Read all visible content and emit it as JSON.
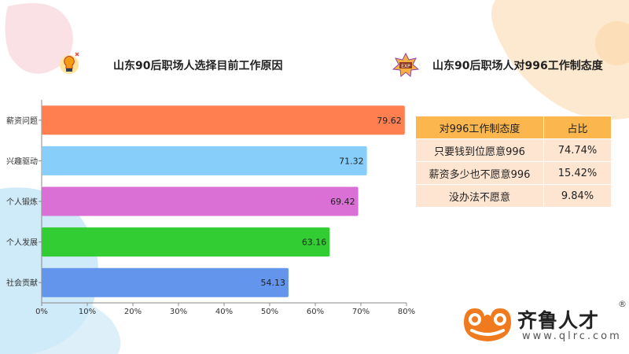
{
  "left_panel": {
    "title": "山东90后职场人选择目前工作原因"
  },
  "right_panel": {
    "title": "山东90后职场人对996工作制态度",
    "table": {
      "headers": [
        "对996工作制态度",
        "占比"
      ],
      "rows": [
        [
          "只要钱到位愿意996",
          "74.74%"
        ],
        [
          "薪资多少也不愿意996",
          "15.42%"
        ],
        [
          "没办法不愿意",
          "9.84%"
        ]
      ]
    }
  },
  "chart_data": {
    "type": "bar",
    "orientation": "horizontal",
    "categories": [
      "薪资问题",
      "兴趣驱动",
      "个人锻炼",
      "个人发展",
      "社会贡献"
    ],
    "values": [
      79.62,
      71.32,
      69.42,
      63.16,
      54.13
    ],
    "colors": [
      "#FF7F50",
      "#87CEFA",
      "#DA70D6",
      "#32CD32",
      "#6495ED"
    ],
    "xlim": [
      0,
      80
    ],
    "xticks": [
      "0%",
      "10%",
      "20%",
      "30%",
      "40%",
      "50%",
      "60%",
      "70%",
      "80%"
    ],
    "grid": false
  },
  "logo": {
    "name": "齐鲁人才",
    "url": "www.qlrc.com",
    "reg_mark": "®",
    "color": "#F07A1E"
  },
  "icons": {
    "left_title_icon": "lightbulb-icon",
    "right_title_icon": "exp-badge-icon"
  }
}
